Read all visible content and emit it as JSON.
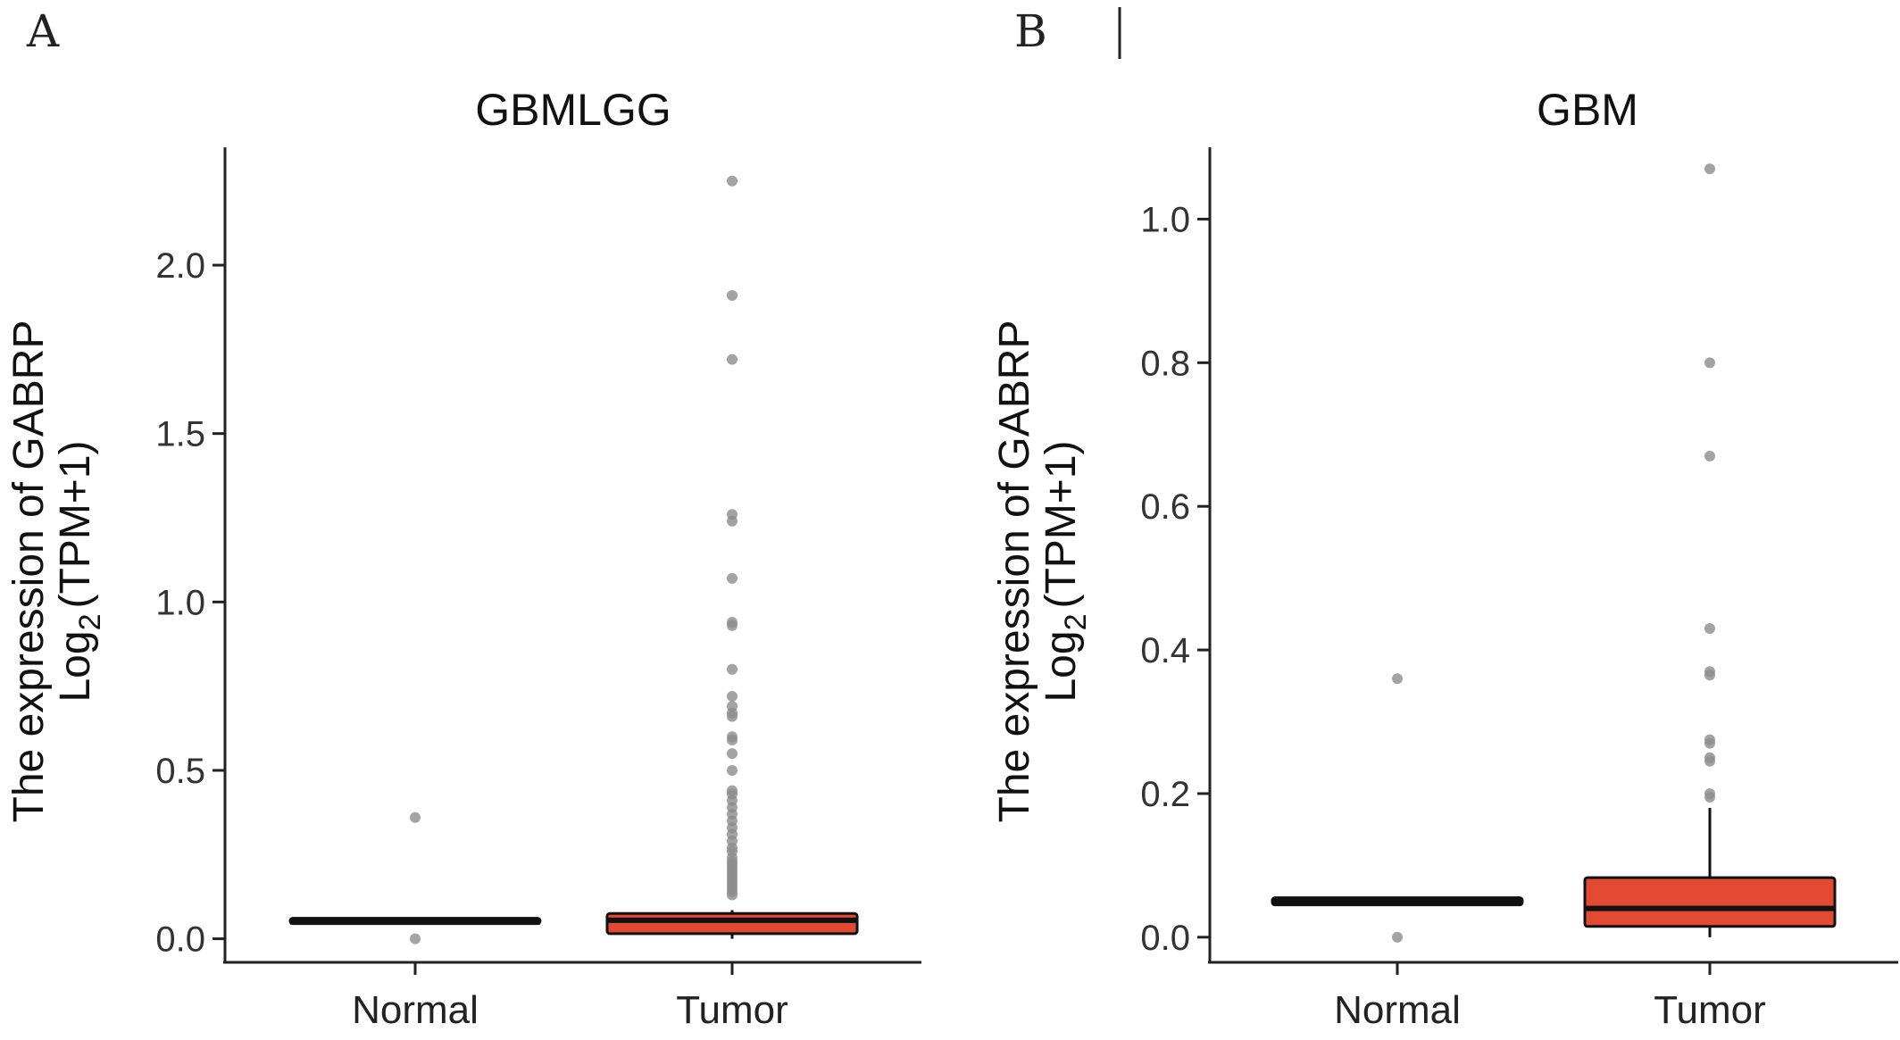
{
  "panels": {
    "a": {
      "letter": "A"
    },
    "b": {
      "letter": "B"
    }
  },
  "colors": {
    "tumor_box": "#e34a33",
    "normal_box": "#000000",
    "outlier": "#8c8c8c",
    "line": "#111111"
  },
  "chart_data": [
    {
      "type": "box",
      "title": "GBMLGG",
      "ylabel_line1": "The expression of GABRP",
      "ylabel_line2_prefix": "Log",
      "ylabel_line2_sub": "2",
      "ylabel_line2_suffix": "(TPM+1)",
      "ylim": [
        -0.07,
        2.35
      ],
      "yticks": [
        0.0,
        0.5,
        1.0,
        1.5,
        2.0
      ],
      "ytick_labels": [
        "0.0",
        "0.5",
        "1.0",
        "1.5",
        "2.0"
      ],
      "categories": [
        "Normal",
        "Tumor"
      ],
      "boxes": [
        {
          "category": "Normal",
          "q1": 0.045,
          "median": 0.05,
          "q3": 0.055,
          "whisker_low": 0.045,
          "whisker_high": 0.055,
          "color": "#000000",
          "outliers": [
            0.36,
            0.0
          ]
        },
        {
          "category": "Tumor",
          "q1": 0.015,
          "median": 0.055,
          "q3": 0.075,
          "whisker_low": 0.0,
          "whisker_high": 0.085,
          "color": "#e34a33",
          "outliers": [
            2.25,
            1.91,
            1.72,
            1.26,
            1.24,
            1.07,
            0.94,
            0.93,
            0.8,
            0.72,
            0.69,
            0.67,
            0.66,
            0.6,
            0.59,
            0.55,
            0.5,
            0.44,
            0.43,
            0.41,
            0.39,
            0.37,
            0.35,
            0.33,
            0.31,
            0.29,
            0.27,
            0.26,
            0.24,
            0.23,
            0.22,
            0.21,
            0.2,
            0.19,
            0.18,
            0.17,
            0.16,
            0.15,
            0.14,
            0.13
          ]
        }
      ]
    },
    {
      "type": "box",
      "title": "GBM",
      "ylabel_line1": "The expression of GABRP",
      "ylabel_line2_prefix": "Log",
      "ylabel_line2_sub": "2",
      "ylabel_line2_suffix": "(TPM+1)",
      "ylim": [
        -0.035,
        1.1
      ],
      "yticks": [
        0.0,
        0.2,
        0.4,
        0.6,
        0.8,
        1.0
      ],
      "ytick_labels": [
        "0.0",
        "0.2",
        "0.4",
        "0.6",
        "0.8",
        "1.0"
      ],
      "categories": [
        "Normal",
        "Tumor"
      ],
      "boxes": [
        {
          "category": "Normal",
          "q1": 0.045,
          "median": 0.05,
          "q3": 0.055,
          "whisker_low": 0.045,
          "whisker_high": 0.055,
          "color": "#000000",
          "outliers": [
            0.36,
            0.0
          ]
        },
        {
          "category": "Tumor",
          "q1": 0.015,
          "median": 0.04,
          "q3": 0.083,
          "whisker_low": 0.0,
          "whisker_high": 0.18,
          "color": "#e34a33",
          "outliers": [
            1.07,
            0.8,
            0.67,
            0.43,
            0.37,
            0.365,
            0.275,
            0.27,
            0.25,
            0.245,
            0.2,
            0.195
          ]
        }
      ]
    }
  ]
}
